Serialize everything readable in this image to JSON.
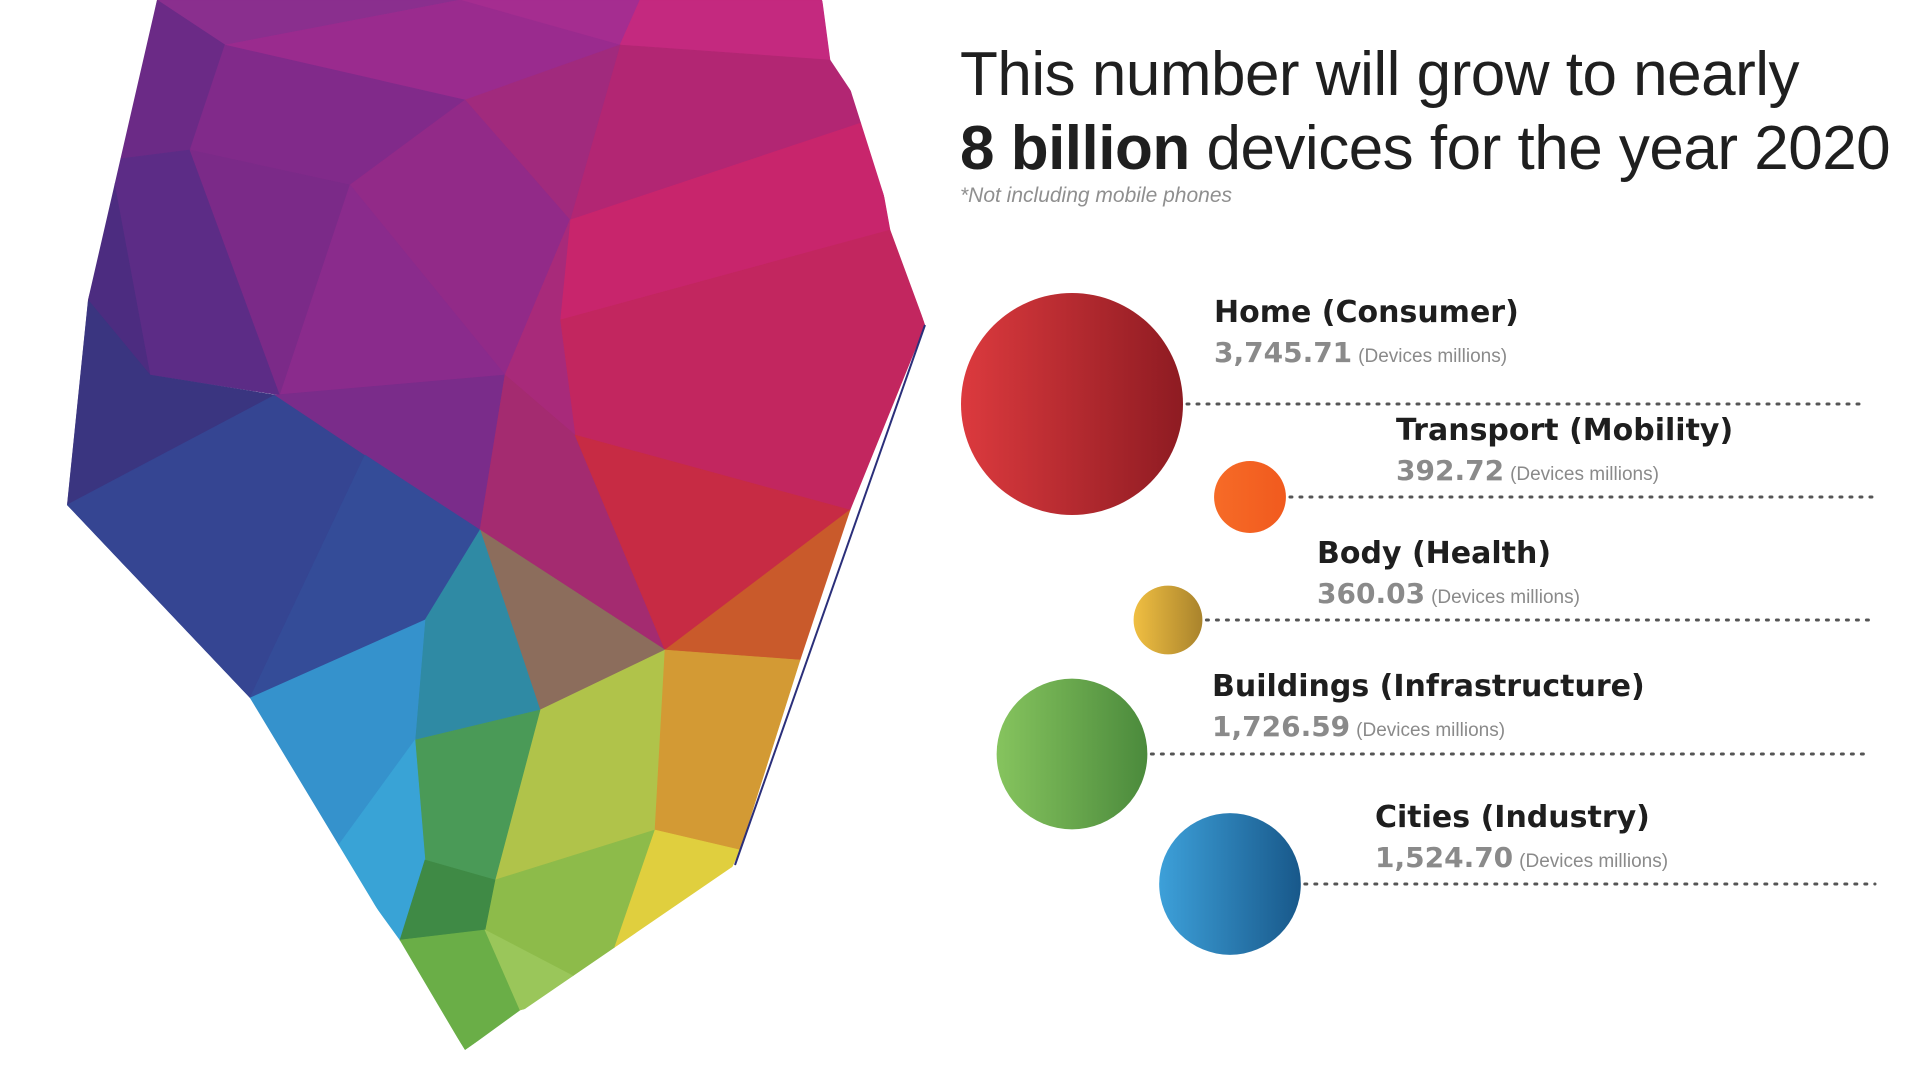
{
  "headline": {
    "line1": "This number will grow to nearly",
    "line2_bold": "8 billion",
    "line2_rest": " devices for the year 2020",
    "note": "*Not including mobile phones"
  },
  "chart_data": {
    "type": "bubble",
    "unit": "(Devices millions)",
    "categories": [
      "Home (Consumer)",
      "Transport (Mobility)",
      "Body (Health)",
      "Buildings (Infrastructure)",
      "Cities (Industry)"
    ],
    "values": [
      3745.71,
      392.72,
      360.03,
      1726.59,
      1524.7
    ],
    "value_labels": [
      "3,745.71",
      "392.72",
      "360.03",
      "1,726.59",
      "1,524.70"
    ],
    "colors": [
      [
        "#dc3a3e",
        "#8e1b22"
      ],
      [
        "#f66b27",
        "#f15a1e"
      ],
      [
        "#f0bf42",
        "#a9832c"
      ],
      [
        "#86c45e",
        "#4b8a3c"
      ],
      [
        "#3da0d9",
        "#18588a"
      ]
    ]
  }
}
